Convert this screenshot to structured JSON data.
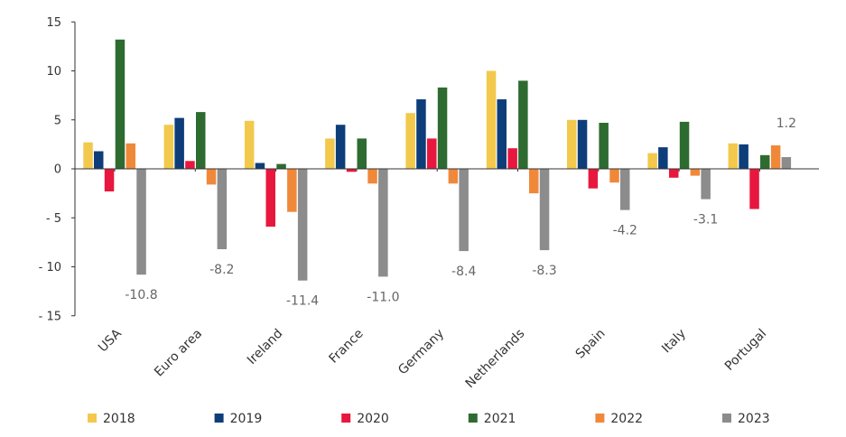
{
  "chart_data": {
    "type": "bar",
    "categories": [
      "USA",
      "Euro area",
      "Ireland",
      "France",
      "Germany",
      "Netherlands",
      "Spain",
      "Italy",
      "Portugal"
    ],
    "series": [
      {
        "name": "2018",
        "color": "#F2C94C",
        "values": [
          2.7,
          4.5,
          4.9,
          3.1,
          5.7,
          10.0,
          5.0,
          1.6,
          2.6
        ]
      },
      {
        "name": "2019",
        "color": "#0E3E7A",
        "values": [
          1.8,
          5.2,
          0.6,
          4.5,
          7.1,
          7.1,
          5.0,
          2.2,
          2.5
        ]
      },
      {
        "name": "2020",
        "color": "#E8173E",
        "values": [
          -2.3,
          0.8,
          -5.9,
          -0.3,
          3.1,
          2.1,
          -2.0,
          -0.9,
          -4.1
        ]
      },
      {
        "name": "2021",
        "color": "#2E6B30",
        "values": [
          13.2,
          5.8,
          0.5,
          3.1,
          8.3,
          9.0,
          4.7,
          4.8,
          1.4
        ]
      },
      {
        "name": "2022",
        "color": "#F0883A",
        "values": [
          2.6,
          -1.6,
          -4.4,
          -1.5,
          -1.5,
          -2.5,
          -1.4,
          -0.7,
          2.4
        ]
      },
      {
        "name": "2023",
        "color": "#8C8C8C",
        "values": [
          -10.8,
          -8.2,
          -11.4,
          -11.0,
          -8.4,
          -8.3,
          -4.2,
          -3.1,
          1.2
        ]
      }
    ],
    "data_labels": [
      "-10.8",
      "-8.2",
      "-11.4",
      "-11.0",
      "-8.4",
      "-8.3",
      "-4.2",
      "-3.1",
      "1.2"
    ],
    "yticks": [
      15,
      10,
      5,
      0,
      -5,
      -10,
      -15
    ],
    "ytick_labels": [
      "15",
      "10",
      "5",
      "0",
      "- 5",
      "- 10",
      "- 15"
    ],
    "ylim": [
      -15,
      15
    ],
    "title": "",
    "xlabel": "",
    "ylabel": "",
    "grid": false,
    "legend_position": "bottom"
  }
}
